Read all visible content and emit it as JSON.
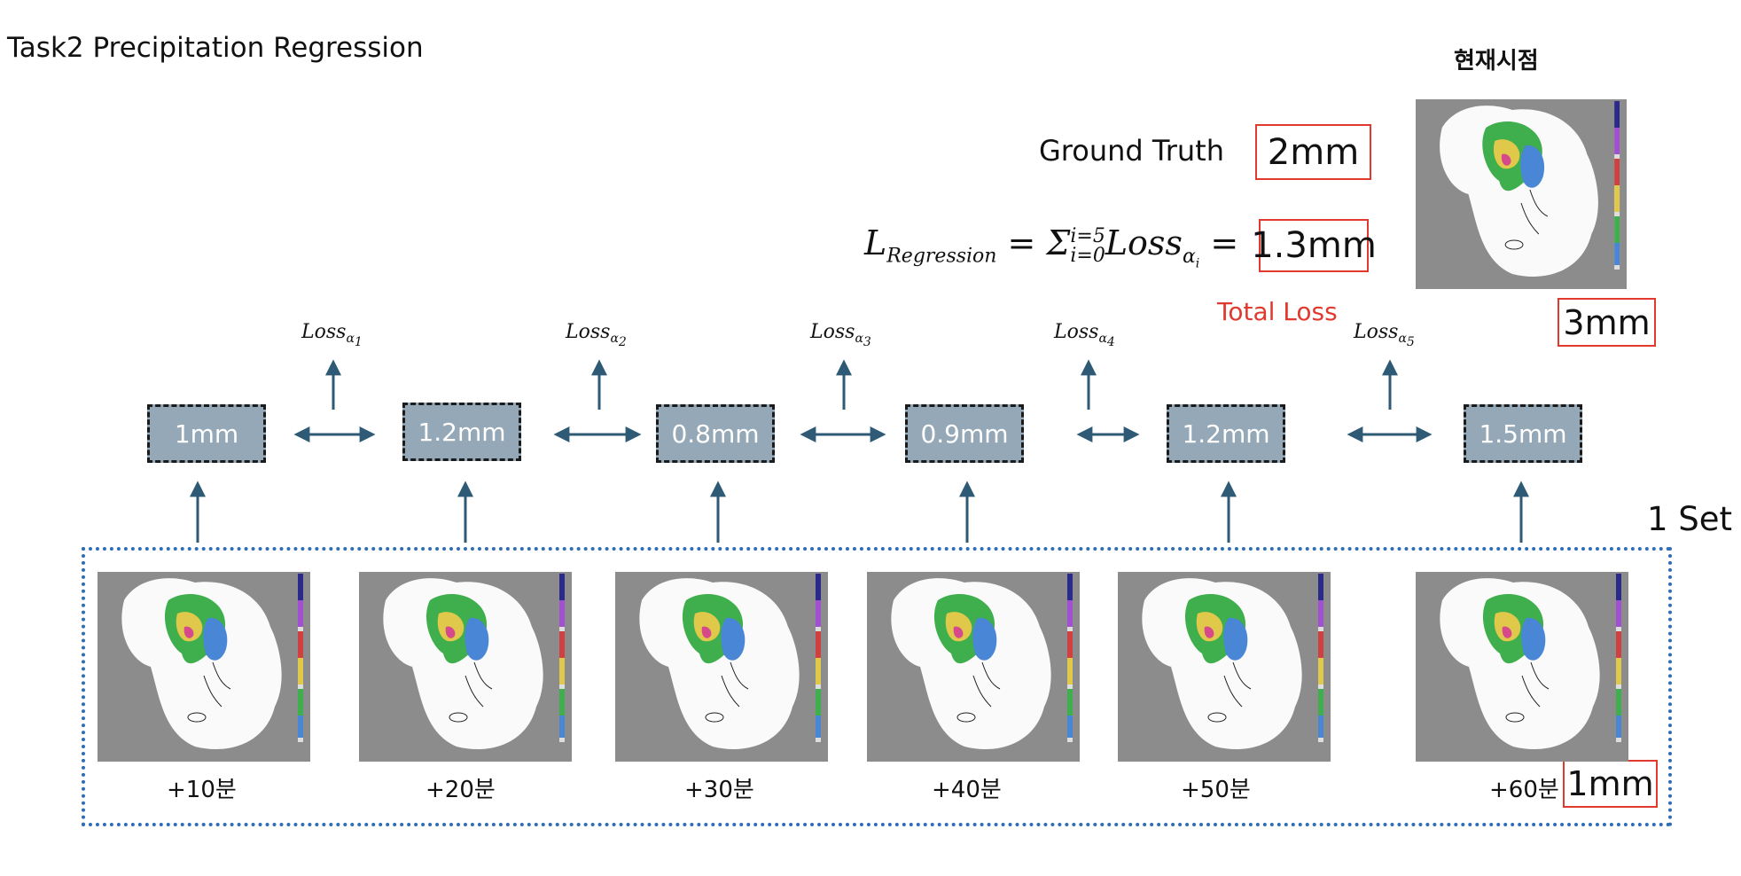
{
  "title": "Task2 Precipitation Regression",
  "current_time_label": "현재시점",
  "ground_truth": {
    "label": "Ground Truth",
    "value": "2mm"
  },
  "formula": {
    "lhs": "L",
    "lhs_sub": "Regression",
    "eq1": " = Σ",
    "sum_sup": "i=5",
    "sum_sub": "i=0",
    "term": "Loss",
    "term_sub": "α",
    "term_sub_index": "i",
    "eq2": " = ",
    "value": "1.3mm"
  },
  "total_loss_label": "Total Loss",
  "current_value": "3mm",
  "set_label": "1 Set",
  "predictions": [
    "1mm",
    "1.2mm",
    "0.8mm",
    "0.9mm",
    "1.2mm",
    "1.5mm"
  ],
  "losses": [
    {
      "name": "Loss",
      "sub": "α",
      "index": "1"
    },
    {
      "name": "Loss",
      "sub": "α",
      "index": "2"
    },
    {
      "name": "Loss",
      "sub": "α",
      "index": "3"
    },
    {
      "name": "Loss",
      "sub": "α",
      "index": "4"
    },
    {
      "name": "Loss",
      "sub": "α",
      "index": "5"
    }
  ],
  "time_labels": [
    "+10분",
    "+20분",
    "+30분",
    "+40분",
    "+50분",
    "+60분"
  ],
  "last_value": "1mm",
  "colors": {
    "box_fill": "#94a8b7",
    "arrow": "#2e5a75",
    "highlight": "#e03a2f",
    "set_frame": "#2f6db5"
  }
}
